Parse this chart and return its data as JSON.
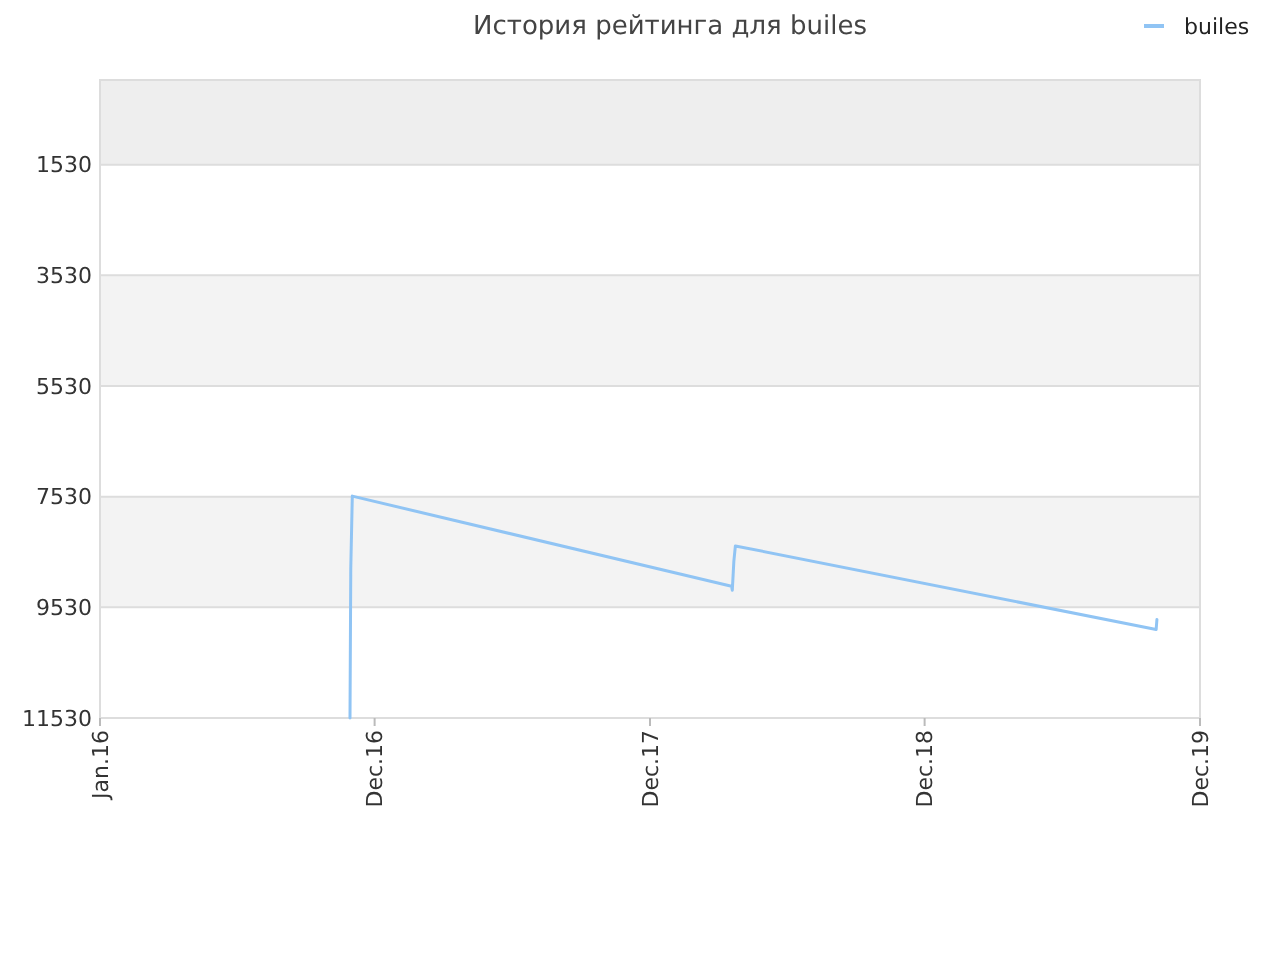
{
  "chart_data": {
    "type": "line",
    "title": "История рейтинга для builes",
    "xlim": [
      "2016-01-01",
      "2019-12-01"
    ],
    "xticks": [
      {
        "value": "2016-01-01",
        "label": "Jan.16"
      },
      {
        "value": "2016-12-23",
        "label": "Dec.16"
      },
      {
        "value": "2017-12-16",
        "label": "Dec.17"
      },
      {
        "value": "2018-12-08",
        "label": "Dec.18"
      },
      {
        "value": "2019-12-01",
        "label": "Dec.19"
      }
    ],
    "ylim": [
      11530,
      0
    ],
    "yticks": [
      1530,
      3530,
      5530,
      7530,
      9530,
      11530
    ],
    "grid": "y",
    "legend": "top right",
    "marker": "none",
    "line_style": "solid",
    "bands": [
      {
        "axis": "y",
        "from": 0,
        "to": 1530,
        "color": "#eeeeee"
      },
      {
        "axis": "y",
        "from": 3530,
        "to": 5530,
        "color": "#f3f3f3"
      },
      {
        "axis": "y",
        "from": 7530,
        "to": 9530,
        "color": "#f3f3f3"
      }
    ],
    "series": [
      {
        "name": "builes",
        "color": "#90c4f4",
        "x": [
          "2016-11-21",
          "2016-11-22",
          "2016-11-22",
          "2016-11-24",
          "2018-04-01",
          "2018-04-02",
          "2018-04-04",
          "2018-04-06",
          "2019-10-05",
          "2019-10-06"
        ],
        "values": [
          11530,
          8820,
          8820,
          7520,
          9150,
          9220,
          8700,
          8420,
          9930,
          9750
        ]
      }
    ]
  }
}
